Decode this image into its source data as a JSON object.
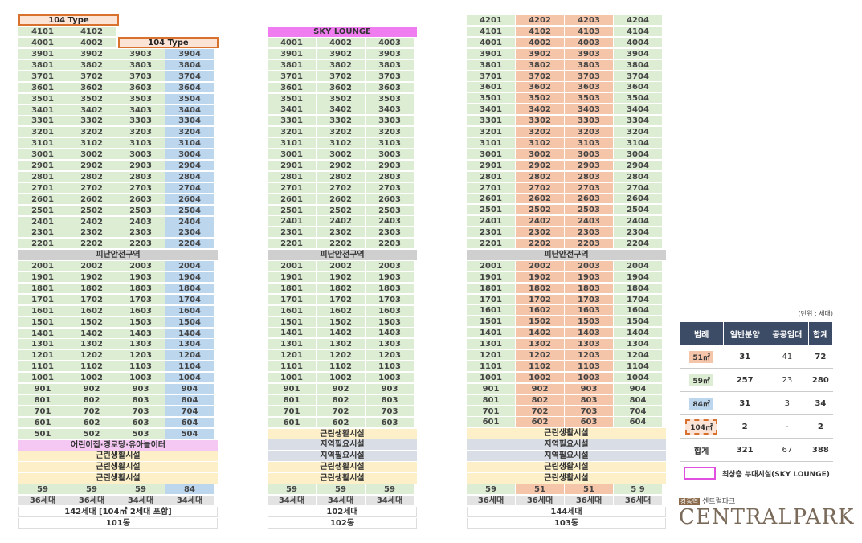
{
  "b101": {
    "top_box": "104 Type",
    "top_row": [
      "4101",
      "4102"
    ],
    "row40": [
      "4001",
      "4002"
    ],
    "row40_box": "104 Type",
    "upper_floors": [
      39,
      38,
      37,
      36,
      35,
      34,
      33,
      32,
      31,
      30,
      29,
      28,
      27,
      26,
      25,
      24,
      23,
      22
    ],
    "refuge": "피난안전구역",
    "lower_floors": [
      20,
      19,
      18,
      17,
      16,
      15,
      14,
      13,
      12,
      11,
      10,
      9,
      8,
      7,
      6,
      5
    ],
    "facilities": [
      "어린이집·경로당·유아놀이터",
      "근린생활시설",
      "근린생활시설",
      "근린생활시설"
    ],
    "types": [
      "59",
      "59",
      "59",
      "84"
    ],
    "counts": [
      "36세대",
      "36세대",
      "34세대",
      "34세대"
    ],
    "total": "142세대 [104㎡ 2세대 포함]",
    "name": "101동"
  },
  "b102": {
    "top": "SKY LOUNGE",
    "upper_floors": [
      40,
      39,
      38,
      37,
      36,
      35,
      34,
      33,
      32,
      31,
      30,
      29,
      28,
      27,
      26,
      25,
      24,
      23,
      22
    ],
    "refuge": "피난안전구역",
    "lower_floors": [
      20,
      19,
      18,
      17,
      16,
      15,
      14,
      13,
      12,
      11,
      10,
      9,
      8,
      7,
      6
    ],
    "facilities": [
      "근린생활시설",
      "지역필요시설",
      "지역필요시설",
      "근린생활시설",
      "근린생활시설"
    ],
    "types": [
      "59",
      "59",
      "59"
    ],
    "counts": [
      "34세대",
      "34세대",
      "34세대"
    ],
    "total": "102세대",
    "name": "102동"
  },
  "b103": {
    "upper_floors": [
      42,
      41,
      40,
      39,
      38,
      37,
      36,
      35,
      34,
      33,
      32,
      31,
      30,
      29,
      28,
      27,
      26,
      25,
      24,
      23,
      22
    ],
    "refuge": "피난안전구역",
    "lower_floors": [
      20,
      19,
      18,
      17,
      16,
      15,
      14,
      13,
      12,
      11,
      10,
      9,
      8,
      7,
      6
    ],
    "facilities": [
      "근린생활시설",
      "지역필요시설",
      "지역필요시설",
      "근린생활시설",
      "근린생활시설"
    ],
    "types": [
      "59",
      "51",
      "51",
      "5 9"
    ],
    "counts": [
      "36세대",
      "36세대",
      "36세대",
      "36세대"
    ],
    "total": "144세대",
    "name": "103동"
  },
  "legend": {
    "unit": "(단위 : 세대)",
    "headers": [
      "범례",
      "일반분양",
      "공공임대",
      "합계"
    ],
    "rows": [
      {
        "label": "51㎡",
        "a": "31",
        "b": "41",
        "t": "72"
      },
      {
        "label": "59㎡",
        "a": "257",
        "b": "23",
        "t": "280"
      },
      {
        "label": "84㎡",
        "a": "31",
        "b": "3",
        "t": "34"
      },
      {
        "label": "104㎡",
        "a": "2",
        "b": "-",
        "t": "2"
      },
      {
        "label": "합계",
        "a": "321",
        "b": "67",
        "t": "388"
      }
    ],
    "sky_note": "최상층 부대시설(SKY LOUNGE)"
  },
  "logo": {
    "tag": "강동역",
    "sub": "센트럴파크",
    "main": "CENTRALPARK"
  },
  "colors": {
    "green": "#dcedd3",
    "blue": "#bcd6ee",
    "orange": "#f5c5aa",
    "sky": "#f07df0",
    "header": "#3d4c66"
  }
}
